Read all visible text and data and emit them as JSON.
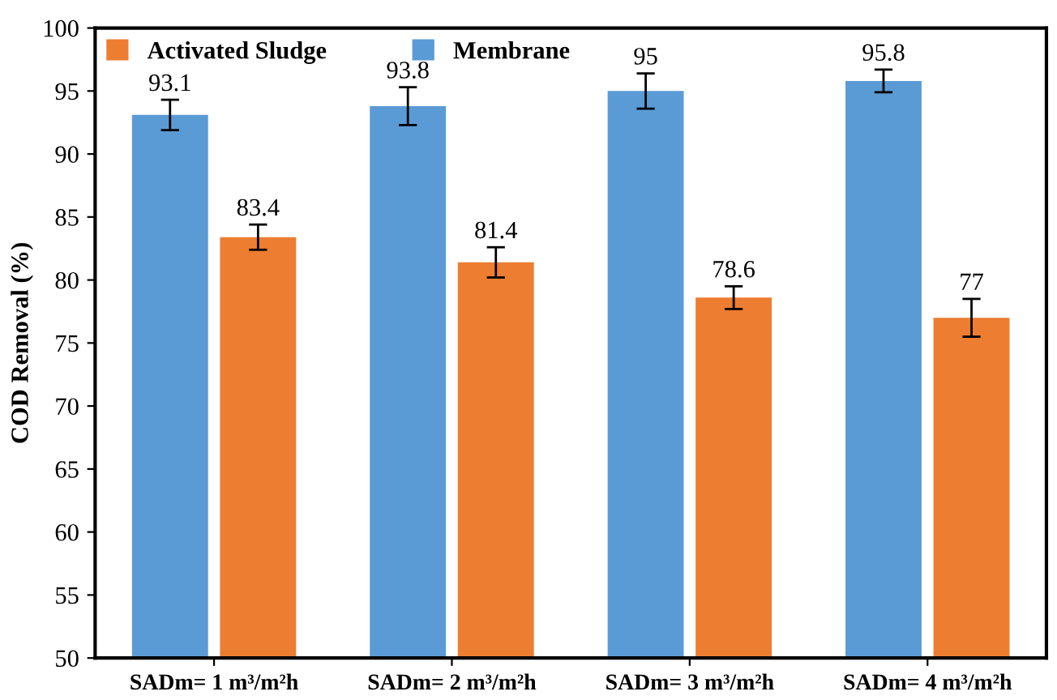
{
  "chart_data": {
    "type": "bar",
    "ylabel": "COD Removal (%)",
    "categories": [
      "SADm= 1 m³/m²h",
      "SADm= 2 m³/m²h",
      "SADm= 3 m³/m²h",
      "SADm= 4 m³/m²h"
    ],
    "series": [
      {
        "name": "Membrane",
        "color": "#5b9bd5",
        "values": [
          93.1,
          93.8,
          95,
          95.8
        ],
        "errors": [
          1.2,
          1.5,
          1.4,
          0.9
        ]
      },
      {
        "name": "Activated Sludge",
        "color": "#ed7d31",
        "values": [
          83.4,
          81.4,
          78.6,
          77
        ],
        "errors": [
          1.0,
          1.2,
          0.9,
          1.5
        ]
      }
    ],
    "ylim": [
      50,
      100
    ],
    "yticks": [
      50,
      55,
      60,
      65,
      70,
      75,
      80,
      85,
      90,
      95,
      100
    ],
    "data_labels": true,
    "legend": "top left",
    "grid": false
  }
}
